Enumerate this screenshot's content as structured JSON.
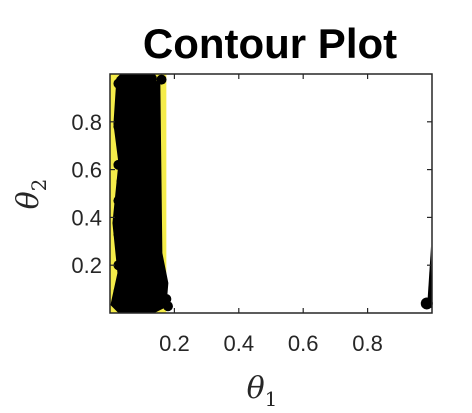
{
  "chart_data": {
    "type": "contour",
    "title": "Contour Plot",
    "xlabel": "θ",
    "xlabel_sub": "1",
    "ylabel": "θ",
    "ylabel_sub": "2",
    "xlim": [
      0.0,
      1.0
    ],
    "ylim": [
      0.0,
      1.0
    ],
    "xticks": [
      0.2,
      0.4,
      0.6,
      0.8
    ],
    "xtick_labels": [
      "0.2",
      "0.4",
      "0.6",
      "0.8"
    ],
    "yticks": [
      0.2,
      0.4,
      0.6,
      0.8
    ],
    "ytick_labels": [
      "0.2",
      "0.4",
      "0.6",
      "0.8"
    ],
    "grid": false,
    "colors": {
      "fill": "#f5ec4a",
      "lines": "#000000",
      "axes": "#262626",
      "background": "#ffffff"
    },
    "filled_region": {
      "x": [
        0.0,
        0.02
      ],
      "y": [
        0.0,
        1.0
      ]
    },
    "contour_band": {
      "x_min": 0.02,
      "x_max": 0.175,
      "y_min": 0.0,
      "y_max": 1.0
    },
    "outlier_spike": {
      "points": [
        [
          0.997,
          0.28
        ],
        [
          0.985,
          0.03
        ],
        [
          1.0,
          0.02
        ]
      ]
    },
    "outlier_point": {
      "x": 0.99,
      "y": 0.04
    }
  }
}
